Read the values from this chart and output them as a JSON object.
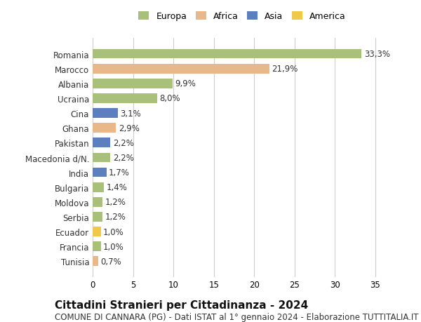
{
  "countries": [
    "Romania",
    "Marocco",
    "Albania",
    "Ucraina",
    "Cina",
    "Ghana",
    "Pakistan",
    "Macedonia d/N.",
    "India",
    "Bulgaria",
    "Moldova",
    "Serbia",
    "Ecuador",
    "Francia",
    "Tunisia"
  ],
  "values": [
    33.3,
    21.9,
    9.9,
    8.0,
    3.1,
    2.9,
    2.2,
    2.2,
    1.7,
    1.4,
    1.2,
    1.2,
    1.0,
    1.0,
    0.7
  ],
  "labels": [
    "33,3%",
    "21,9%",
    "9,9%",
    "8,0%",
    "3,1%",
    "2,9%",
    "2,2%",
    "2,2%",
    "1,7%",
    "1,4%",
    "1,2%",
    "1,2%",
    "1,0%",
    "1,0%",
    "0,7%"
  ],
  "continents": [
    "Europa",
    "Africa",
    "Europa",
    "Europa",
    "Asia",
    "Africa",
    "Asia",
    "Europa",
    "Asia",
    "Europa",
    "Europa",
    "Europa",
    "America",
    "Europa",
    "Africa"
  ],
  "colors": {
    "Europa": "#a8c07a",
    "Africa": "#e8b88a",
    "Asia": "#5b7fbf",
    "America": "#f0c84a"
  },
  "legend_order": [
    "Europa",
    "Africa",
    "Asia",
    "America"
  ],
  "title": "Cittadini Stranieri per Cittadinanza - 2024",
  "subtitle": "COMUNE DI CANNARA (PG) - Dati ISTAT al 1° gennaio 2024 - Elaborazione TUTTITALIA.IT",
  "xlim": [
    0,
    37
  ],
  "xticks": [
    0,
    5,
    10,
    15,
    20,
    25,
    30,
    35
  ],
  "background_color": "#ffffff",
  "grid_color": "#cccccc",
  "bar_height": 0.65,
  "title_fontsize": 11,
  "subtitle_fontsize": 8.5,
  "tick_fontsize": 8.5,
  "label_fontsize": 8.5,
  "legend_fontsize": 9
}
